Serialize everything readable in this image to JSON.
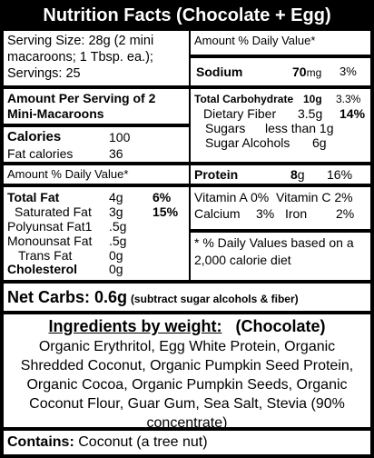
{
  "title": "Nutrition Facts (Chocolate + Egg)",
  "serving": {
    "size": "Serving Size: 28g (2 mini macaroons; 1 Tbsp. ea.);",
    "servings": "Servings: 25"
  },
  "amount_per_serving": "Amount Per Serving of 2 Mini-Macaroons",
  "calories": {
    "label": "Calories",
    "value": "100",
    "fat_label": "Fat calories",
    "fat_value": "36"
  },
  "dv_header": "Amount  % Daily Value*",
  "fats": {
    "total_fat": {
      "label": "Total Fat",
      "amount": "4g",
      "dv": "6%"
    },
    "saturated_fat": {
      "label": "Saturated Fat",
      "amount": "3g",
      "dv": "15%"
    },
    "polyunsat": {
      "label": "Polyunsat Fat1",
      "amount": ".5g"
    },
    "monounsat": {
      "label": "Monounsat Fat",
      "amount": ".5g"
    },
    "trans_fat": {
      "label": "Trans Fat",
      "amount": "0g"
    },
    "cholesterol": {
      "label": "Cholesterol",
      "amount": "0g"
    }
  },
  "right_dv_header": "Amount  % Daily Value*",
  "sodium": {
    "label": "Sodium",
    "amount": "70",
    "unit": "mg",
    "dv": "3%"
  },
  "carbs": {
    "total": {
      "label": "Total Carbohydrate",
      "amount": "10g",
      "dv": "3.3%"
    },
    "fiber": {
      "label": "Dietary Fiber",
      "amount": "3.5g",
      "dv": "14%"
    },
    "sugars": {
      "label": "Sugars",
      "amount": "less than 1g"
    },
    "sugar_alcohols": {
      "label": "Sugar Alcohols",
      "amount": "6g"
    }
  },
  "protein": {
    "label": "Protein",
    "amount": "8",
    "unit": "g",
    "dv": "16%"
  },
  "vitamins": {
    "line1": "Vitamin A 0%  Vitamin C 2%",
    "calcium": "Calcium",
    "calcium_dv": "3%",
    "iron": "Iron",
    "iron_dv": "2%"
  },
  "footnote": "* % Daily Values based on a 2,000 calorie diet",
  "net_carbs": {
    "label": "Net Carbs: 0.6g",
    "note": "(subtract sugar alcohols & fiber)"
  },
  "ingredients": {
    "heading": "Ingredients by weight:",
    "flavor": "(Chocolate)",
    "text": "Organic Erythritol, Egg White Protein, Organic Shredded Coconut, Organic Pumpkin Seed Protein, Organic Cocoa, Organic Pumpkin Seeds, Organic Coconut Flour, Guar Gum, Sea Salt, Stevia (90% concentrate)"
  },
  "contains": {
    "label": "Contains:",
    "text": "Coconut (a tree nut)"
  }
}
